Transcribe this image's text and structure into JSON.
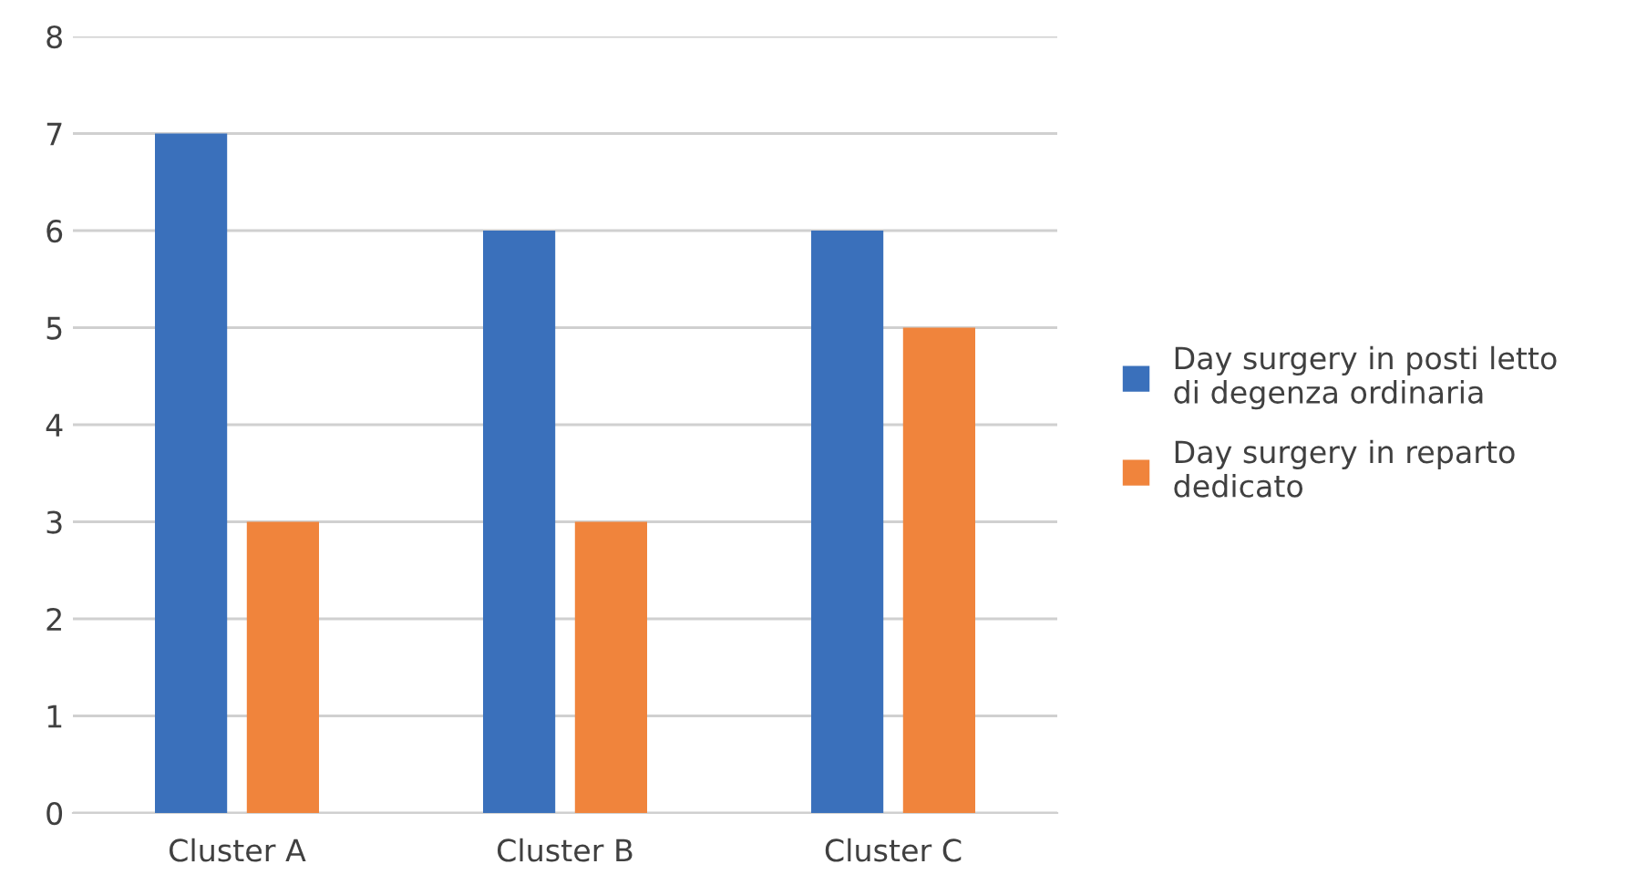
{
  "chart_data": {
    "type": "bar",
    "categories": [
      "Cluster A",
      "Cluster B",
      "Cluster C"
    ],
    "series": [
      {
        "name": "Day surgery in posti letto\ndi degenza ordinaria",
        "color": "#3a70bb",
        "values": [
          7,
          6,
          6
        ]
      },
      {
        "name": "Day surgery in reparto\ndedicato",
        "color": "#f0843c",
        "values": [
          3,
          3,
          5
        ]
      }
    ],
    "ylim": [
      0,
      8
    ],
    "yticks": [
      0,
      1,
      2,
      3,
      4,
      5,
      6,
      7,
      8
    ],
    "grid": "y",
    "legend": "right"
  }
}
